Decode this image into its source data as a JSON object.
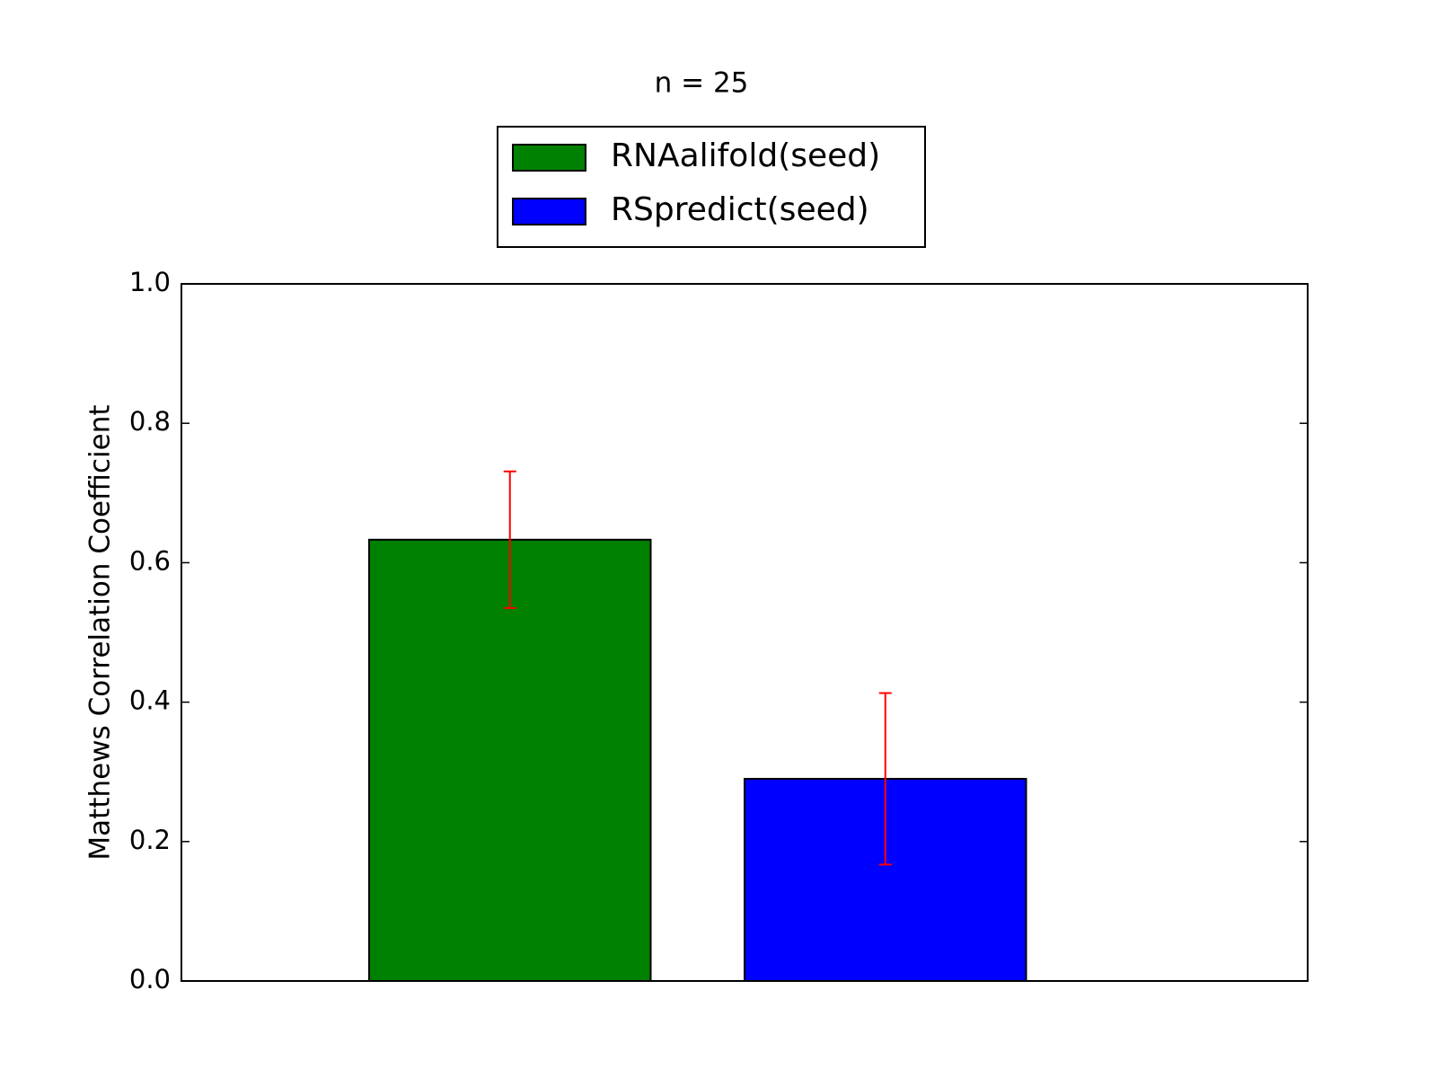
{
  "chart_data": {
    "type": "bar",
    "title": "n = 25",
    "ylabel": "Matthews Correlation Coefficient",
    "series": [
      {
        "name": "RNAalifold(seed)",
        "color": "#008000",
        "values": [
          0.633
        ],
        "errors": [
          0.098
        ]
      },
      {
        "name": "RSpredict(seed)",
        "color": "#0000ff",
        "values": [
          0.29
        ],
        "errors": [
          0.123
        ]
      }
    ],
    "error_color": "#ff0000",
    "ylim": [
      0,
      1
    ],
    "yticks": [
      {
        "value": 0,
        "label": "0.0"
      },
      0.2,
      0.4,
      0.6,
      0.8,
      {
        "value": 1,
        "label": "1.0"
      }
    ],
    "legend": "upper center outside"
  }
}
